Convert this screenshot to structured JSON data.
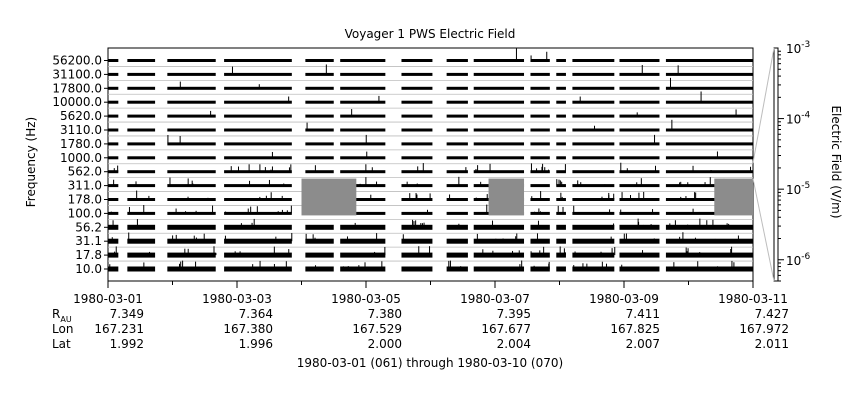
{
  "chart_data": {
    "type": "heatmap",
    "title": "Voyager 1 PWS Electric Field",
    "ylabel": "Frequency (Hz)",
    "y2label": "Electric Field (V/m)",
    "xlabel": "1980-03-01 (061) through 1980-03-10 (070)",
    "x_range": [
      "1980-03-01",
      "1980-03-11"
    ],
    "x_ticks": [
      "1980-03-01",
      "1980-03-03",
      "1980-03-05",
      "1980-03-07",
      "1980-03-09",
      "1980-03-11"
    ],
    "channels_hz": [
      "56200.0",
      "31100.0",
      "17800.0",
      "10000.0",
      "5620.0",
      "3110.0",
      "1780.0",
      "1000.0",
      "562.0",
      "311.0",
      "178.0",
      "100.0",
      "56.2",
      "31.1",
      "17.8",
      "10.0"
    ],
    "colorbar": {
      "scale": "log",
      "range": [
        5e-07,
        0.001
      ],
      "tick_labels": [
        {
          "mantissa": "10",
          "exp": "-3",
          "value": 0.001
        },
        {
          "mantissa": "10",
          "exp": "-4",
          "value": 0.0001
        },
        {
          "mantissa": "10",
          "exp": "-5",
          "value": 1e-05
        },
        {
          "mantissa": "10",
          "exp": "-6",
          "value": 1e-06
        }
      ]
    },
    "ephemeris": {
      "rows": [
        {
          "label": "R",
          "sub": "AU",
          "values": [
            "7.349",
            "7.364",
            "7.380",
            "7.395",
            "7.411",
            "7.427"
          ]
        },
        {
          "label": "Lon",
          "sub": "",
          "values": [
            "167.231",
            "167.380",
            "167.529",
            "167.677",
            "167.825",
            "167.972"
          ]
        },
        {
          "label": "Lat",
          "sub": "",
          "values": [
            "1.992",
            "1.996",
            "2.000",
            "2.004",
            "2.007",
            "2.011"
          ]
        }
      ]
    },
    "data_gaps_days": [
      [
        0.16,
        0.3
      ],
      [
        0.73,
        0.92
      ],
      [
        1.67,
        1.8
      ],
      [
        2.85,
        3.06
      ],
      [
        3.5,
        3.6
      ],
      [
        4.3,
        4.55
      ],
      [
        5.03,
        5.25
      ],
      [
        5.58,
        5.67
      ],
      [
        6.45,
        6.55
      ],
      [
        6.85,
        6.95
      ],
      [
        7.1,
        7.2
      ],
      [
        7.85,
        7.93
      ],
      [
        8.55,
        8.65
      ]
    ]
  }
}
